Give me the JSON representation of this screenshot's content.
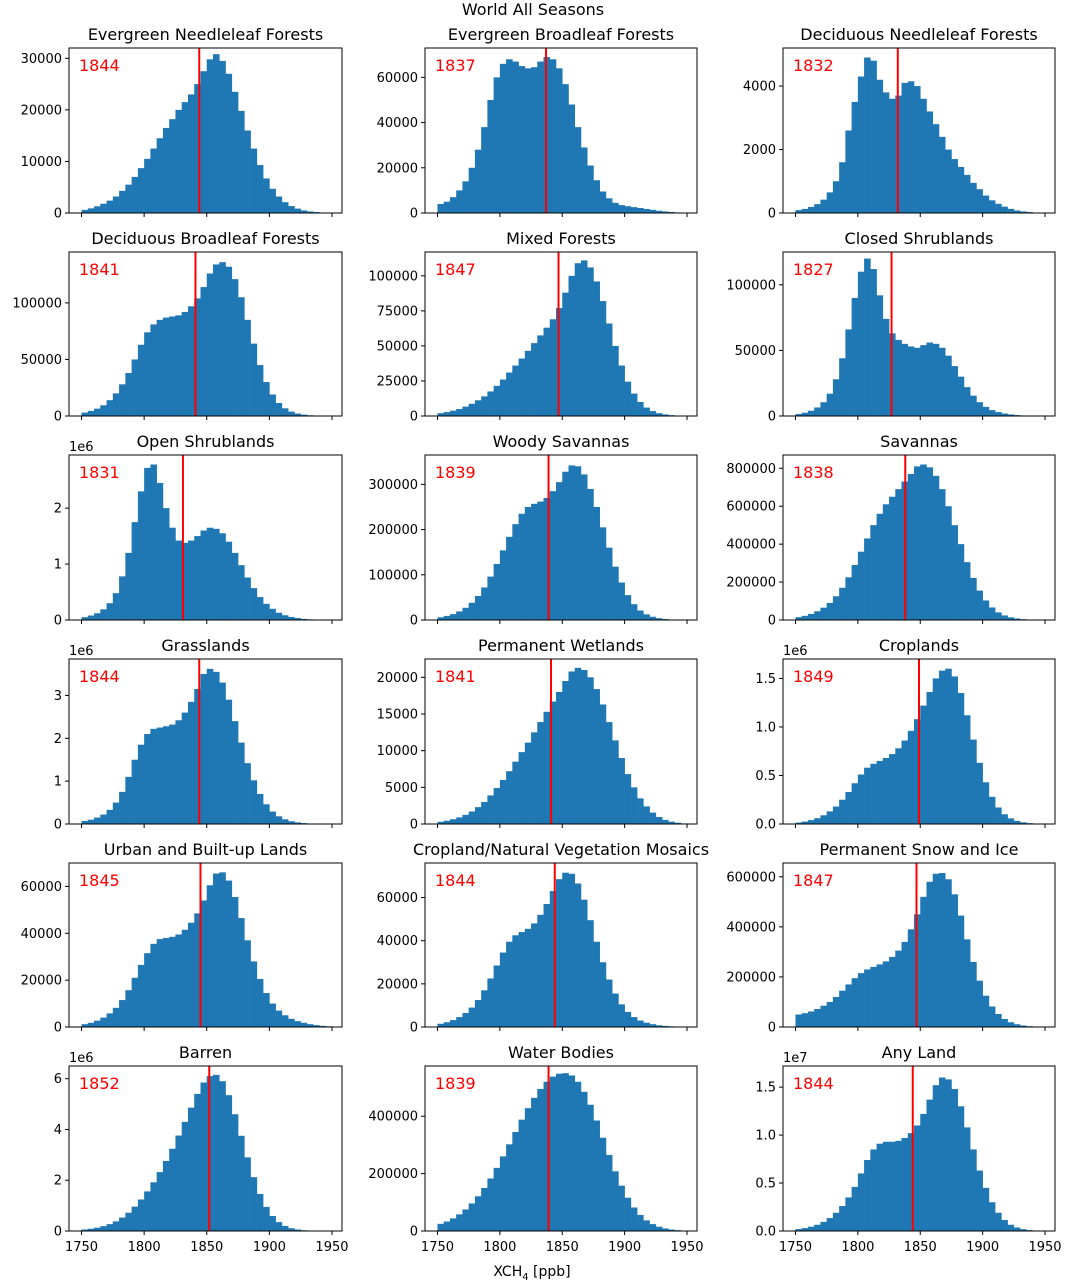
{
  "figure": {
    "suptitle": "World All Seasons",
    "xlabel_main": "XCH",
    "xlabel_sub": "4",
    "xlabel_unit": " [ppb]"
  },
  "colors": {
    "bar": "#1f77b4",
    "median_line": "#ff0000",
    "median_text": "#ff0000",
    "axis": "#000000"
  },
  "x_ticks": [
    1750,
    1800,
    1850,
    1900,
    1950
  ],
  "chart_data": [
    {
      "type": "bar",
      "title": "Evergreen Needleleaf Forests",
      "median": 1844,
      "ymax": 32000,
      "yticks": [
        0,
        10000,
        20000,
        30000
      ],
      "ytick_labels": [
        "0",
        "10000",
        "20000",
        "30000"
      ],
      "offset": "",
      "bin_start": 1750,
      "bin_width": 5,
      "values": [
        600,
        900,
        1300,
        1800,
        2400,
        3200,
        4300,
        5500,
        7000,
        8700,
        10500,
        12500,
        14500,
        16500,
        18200,
        20000,
        21500,
        23000,
        25000,
        27500,
        29800,
        30800,
        29500,
        27000,
        23500,
        19800,
        16000,
        12500,
        9300,
        6700,
        4700,
        3200,
        2100,
        1350,
        850,
        500,
        300,
        180,
        100,
        50
      ]
    },
    {
      "type": "bar",
      "title": "Evergreen Broadleaf Forests",
      "median": 1837,
      "ymax": 73000,
      "yticks": [
        0,
        20000,
        40000,
        60000
      ],
      "ytick_labels": [
        "0",
        "20000",
        "40000",
        "60000"
      ],
      "offset": "",
      "bin_start": 1750,
      "bin_width": 5,
      "values": [
        4000,
        5000,
        7000,
        10000,
        14000,
        20000,
        28000,
        38000,
        50000,
        60000,
        66000,
        68000,
        67000,
        65000,
        64000,
        64500,
        67000,
        69000,
        68000,
        64000,
        57000,
        48000,
        38000,
        29000,
        21000,
        14500,
        9500,
        6500,
        4500,
        3500,
        3000,
        2600,
        2200,
        1800,
        1400,
        1000,
        700,
        450,
        250,
        120
      ]
    },
    {
      "type": "bar",
      "title": "Deciduous Needleleaf Forests",
      "median": 1832,
      "ymax": 5200,
      "yticks": [
        0,
        2000,
        4000
      ],
      "ytick_labels": [
        "0",
        "2000",
        "4000"
      ],
      "offset": "",
      "bin_start": 1750,
      "bin_width": 5,
      "values": [
        90,
        130,
        190,
        280,
        420,
        650,
        1000,
        1600,
        2600,
        3500,
        4300,
        4900,
        4800,
        4200,
        3800,
        3600,
        3700,
        4100,
        4150,
        4000,
        3600,
        3200,
        2800,
        2400,
        2000,
        1700,
        1450,
        1200,
        950,
        750,
        550,
        400,
        290,
        200,
        130,
        80,
        50,
        30,
        15,
        8
      ]
    },
    {
      "type": "bar",
      "title": "Deciduous Broadleaf Forests",
      "median": 1841,
      "ymax": 145000,
      "yticks": [
        0,
        50000,
        100000
      ],
      "ytick_labels": [
        "0",
        "50000",
        "100000"
      ],
      "offset": "",
      "bin_start": 1750,
      "bin_width": 5,
      "values": [
        3000,
        4500,
        6500,
        9500,
        14000,
        20000,
        28000,
        38000,
        50000,
        63000,
        74000,
        81000,
        85000,
        87000,
        88000,
        89000,
        92000,
        97000,
        104000,
        114000,
        126000,
        134000,
        136000,
        132000,
        121000,
        105000,
        85000,
        64000,
        45000,
        30000,
        19000,
        11500,
        6800,
        3900,
        2200,
        1200,
        650,
        340,
        170,
        80
      ]
    },
    {
      "type": "bar",
      "title": "Mixed Forests",
      "median": 1847,
      "ymax": 117000,
      "yticks": [
        0,
        25000,
        50000,
        75000,
        100000
      ],
      "ytick_labels": [
        "0",
        "25000",
        "50000",
        "75000",
        "100000"
      ],
      "offset": "",
      "bin_start": 1750,
      "bin_width": 5,
      "values": [
        2000,
        2800,
        3800,
        5000,
        6700,
        8700,
        11200,
        14000,
        17500,
        21500,
        26000,
        31000,
        36000,
        41000,
        46500,
        52000,
        57500,
        63000,
        69000,
        77000,
        88000,
        100000,
        109000,
        111000,
        106000,
        96000,
        82000,
        66000,
        50000,
        36000,
        24500,
        16000,
        10000,
        6000,
        3500,
        2000,
        1100,
        600,
        300,
        150
      ]
    },
    {
      "type": "bar",
      "title": "Closed Shrublands",
      "median": 1827,
      "ymax": 125000,
      "yticks": [
        0,
        50000,
        100000
      ],
      "ytick_labels": [
        "0",
        "50000",
        "100000"
      ],
      "offset": "",
      "bin_start": 1750,
      "bin_width": 5,
      "values": [
        1500,
        2500,
        4000,
        6500,
        10500,
        17000,
        28000,
        44000,
        66000,
        90000,
        110000,
        120000,
        112000,
        92000,
        74000,
        63000,
        58000,
        55000,
        53000,
        52000,
        54000,
        56000,
        55000,
        52000,
        46000,
        38000,
        30000,
        22000,
        15500,
        10500,
        7000,
        4500,
        3000,
        1900,
        1200,
        700,
        400,
        220,
        120,
        60
      ]
    },
    {
      "type": "bar",
      "title": "Open Shrublands",
      "median": 1831,
      "ymax": 2.95,
      "yticks": [
        0,
        1,
        2
      ],
      "ytick_labels": [
        "0",
        "1",
        "2"
      ],
      "offset": "1e6",
      "bin_start": 1750,
      "bin_width": 5,
      "values": [
        0.05,
        0.08,
        0.12,
        0.19,
        0.3,
        0.48,
        0.78,
        1.2,
        1.75,
        2.3,
        2.72,
        2.78,
        2.45,
        2.0,
        1.65,
        1.42,
        1.38,
        1.42,
        1.5,
        1.6,
        1.65,
        1.63,
        1.55,
        1.4,
        1.2,
        0.98,
        0.76,
        0.57,
        0.41,
        0.29,
        0.2,
        0.13,
        0.085,
        0.055,
        0.035,
        0.02,
        0.012,
        0.007,
        0.004,
        0.002
      ]
    },
    {
      "type": "bar",
      "title": "Woody Savannas",
      "median": 1839,
      "ymax": 365000,
      "yticks": [
        0,
        100000,
        200000,
        300000
      ],
      "ytick_labels": [
        "0",
        "100000",
        "200000",
        "300000"
      ],
      "offset": "",
      "bin_start": 1750,
      "bin_width": 5,
      "values": [
        6000,
        9000,
        13000,
        19000,
        27000,
        38000,
        53000,
        72000,
        96000,
        124000,
        154000,
        184000,
        212000,
        235000,
        250000,
        257000,
        262000,
        270000,
        285000,
        305000,
        328000,
        342000,
        340000,
        322000,
        290000,
        250000,
        205000,
        160000,
        118000,
        83000,
        55000,
        35000,
        21000,
        12500,
        7200,
        4000,
        2100,
        1100,
        550,
        260
      ]
    },
    {
      "type": "bar",
      "title": "Savannas",
      "median": 1838,
      "ymax": 870000,
      "yticks": [
        0,
        200000,
        400000,
        600000,
        800000
      ],
      "ytick_labels": [
        "0",
        "200000",
        "400000",
        "600000",
        "800000"
      ],
      "offset": "",
      "bin_start": 1750,
      "bin_width": 5,
      "values": [
        15000,
        22000,
        32000,
        46000,
        65000,
        90000,
        125000,
        170000,
        225000,
        290000,
        360000,
        430000,
        500000,
        560000,
        610000,
        650000,
        690000,
        730000,
        770000,
        810000,
        820000,
        805000,
        760000,
        690000,
        600000,
        500000,
        400000,
        305000,
        222000,
        155000,
        103000,
        66000,
        40000,
        24000,
        14000,
        8000,
        4300,
        2200,
        1100,
        500
      ]
    },
    {
      "type": "bar",
      "title": "Grasslands",
      "median": 1844,
      "ymax": 3.85,
      "yticks": [
        0,
        1,
        2,
        3
      ],
      "ytick_labels": [
        "0",
        "1",
        "2",
        "3"
      ],
      "offset": "1e6",
      "bin_start": 1750,
      "bin_width": 5,
      "values": [
        0.07,
        0.1,
        0.15,
        0.22,
        0.33,
        0.5,
        0.75,
        1.1,
        1.5,
        1.85,
        2.1,
        2.22,
        2.25,
        2.28,
        2.32,
        2.42,
        2.6,
        2.85,
        3.15,
        3.5,
        3.62,
        3.55,
        3.3,
        2.9,
        2.4,
        1.9,
        1.42,
        1.02,
        0.7,
        0.46,
        0.29,
        0.18,
        0.11,
        0.065,
        0.038,
        0.021,
        0.011,
        0.006,
        0.003,
        0.0015
      ]
    },
    {
      "type": "bar",
      "title": "Permanent Wetlands",
      "median": 1841,
      "ymax": 22500,
      "yticks": [
        0,
        5000,
        10000,
        15000,
        20000
      ],
      "ytick_labels": [
        "0",
        "5000",
        "10000",
        "15000",
        "20000"
      ],
      "offset": "",
      "bin_start": 1750,
      "bin_width": 5,
      "values": [
        300,
        450,
        650,
        900,
        1250,
        1700,
        2300,
        3000,
        3900,
        4900,
        6000,
        7200,
        8500,
        9800,
        11100,
        12500,
        13900,
        15300,
        16700,
        18000,
        19500,
        20800,
        21300,
        21000,
        20000,
        18400,
        16300,
        13900,
        11400,
        9000,
        6800,
        5000,
        3500,
        2400,
        1550,
        950,
        560,
        320,
        170,
        80
      ]
    },
    {
      "type": "bar",
      "title": "Croplands",
      "median": 1849,
      "ymax": 1.7,
      "yticks": [
        0,
        0.5,
        1.0,
        1.5
      ],
      "ytick_labels": [
        "0.0",
        "0.5",
        "1.0",
        "1.5"
      ],
      "offset": "1e6",
      "bin_start": 1750,
      "bin_width": 5,
      "values": [
        0.015,
        0.025,
        0.04,
        0.06,
        0.09,
        0.13,
        0.18,
        0.25,
        0.33,
        0.42,
        0.51,
        0.58,
        0.62,
        0.65,
        0.68,
        0.72,
        0.78,
        0.86,
        0.96,
        1.08,
        1.22,
        1.36,
        1.5,
        1.58,
        1.6,
        1.52,
        1.35,
        1.12,
        0.87,
        0.63,
        0.43,
        0.28,
        0.17,
        0.1,
        0.058,
        0.032,
        0.017,
        0.009,
        0.0045,
        0.002
      ]
    },
    {
      "type": "bar",
      "title": "Urban and Built-up Lands",
      "median": 1845,
      "ymax": 70000,
      "yticks": [
        0,
        20000,
        40000,
        60000
      ],
      "ytick_labels": [
        "0",
        "20000",
        "40000",
        "60000"
      ],
      "offset": "",
      "bin_start": 1750,
      "bin_width": 5,
      "values": [
        1200,
        1800,
        2700,
        4000,
        5800,
        8200,
        11500,
        15700,
        21000,
        26500,
        31500,
        35500,
        37500,
        38000,
        38500,
        39500,
        41500,
        44500,
        48500,
        54000,
        60500,
        65500,
        66000,
        62500,
        55500,
        46500,
        37000,
        28000,
        20500,
        14500,
        10000,
        7000,
        5000,
        3500,
        2500,
        1800,
        1200,
        800,
        500,
        300
      ]
    },
    {
      "type": "bar",
      "title": "Cropland/Natural Vegetation Mosaics",
      "median": 1844,
      "ymax": 76000,
      "yticks": [
        0,
        20000,
        40000,
        60000
      ],
      "ytick_labels": [
        "0",
        "20000",
        "40000",
        "60000"
      ],
      "offset": "",
      "bin_start": 1750,
      "bin_width": 5,
      "values": [
        1500,
        2200,
        3200,
        4600,
        6500,
        9000,
        12500,
        17000,
        22500,
        28500,
        34500,
        39500,
        42500,
        44000,
        45500,
        48000,
        52000,
        57000,
        63000,
        68500,
        71500,
        71000,
        66500,
        59000,
        49500,
        39500,
        30000,
        22000,
        15500,
        10500,
        7000,
        4600,
        3000,
        2000,
        1300,
        800,
        500,
        300,
        180,
        100
      ]
    },
    {
      "type": "bar",
      "title": "Permanent Snow and Ice",
      "median": 1847,
      "ymax": 655000,
      "yticks": [
        0,
        200000,
        400000,
        600000
      ],
      "ytick_labels": [
        "0",
        "200000",
        "400000",
        "600000"
      ],
      "offset": "",
      "bin_start": 1750,
      "bin_width": 5,
      "values": [
        50000,
        55000,
        62000,
        72000,
        85000,
        100000,
        120000,
        145000,
        170000,
        195000,
        215000,
        230000,
        240000,
        250000,
        262000,
        280000,
        305000,
        340000,
        390000,
        450000,
        520000,
        580000,
        612000,
        615000,
        590000,
        530000,
        445000,
        350000,
        260000,
        185000,
        125000,
        82000,
        52000,
        32000,
        19000,
        11000,
        6000,
        3200,
        1600,
        750
      ]
    },
    {
      "type": "bar",
      "title": "Barren",
      "median": 1852,
      "ymax": 6.5,
      "yticks": [
        0,
        2,
        4,
        6
      ],
      "ytick_labels": [
        "0",
        "2",
        "4",
        "6"
      ],
      "offset": "1e6",
      "bin_start": 1750,
      "bin_width": 5,
      "values": [
        0.06,
        0.09,
        0.13,
        0.19,
        0.27,
        0.38,
        0.53,
        0.72,
        0.96,
        1.24,
        1.56,
        1.92,
        2.32,
        2.76,
        3.24,
        3.76,
        4.3,
        4.86,
        5.4,
        5.85,
        6.1,
        6.15,
        5.9,
        5.35,
        4.6,
        3.75,
        2.9,
        2.12,
        1.46,
        0.95,
        0.59,
        0.35,
        0.2,
        0.11,
        0.06,
        0.03,
        0.016,
        0.008,
        0.004,
        0.002
      ]
    },
    {
      "type": "bar",
      "title": "Water Bodies",
      "median": 1839,
      "ymax": 575000,
      "yticks": [
        0,
        200000,
        400000
      ],
      "ytick_labels": [
        "0",
        "200000",
        "400000"
      ],
      "offset": "",
      "bin_start": 1750,
      "bin_width": 5,
      "values": [
        25000,
        33000,
        44000,
        58000,
        75000,
        96000,
        121000,
        150000,
        183000,
        220000,
        260000,
        302000,
        345000,
        388000,
        428000,
        464000,
        495000,
        520000,
        538000,
        548000,
        550000,
        542000,
        520000,
        485000,
        440000,
        385000,
        325000,
        265000,
        208000,
        158000,
        116000,
        82000,
        56000,
        37000,
        24000,
        15000,
        9000,
        5200,
        2900,
        1500
      ]
    },
    {
      "type": "bar",
      "title": "Any Land",
      "median": 1844,
      "ymax": 1.72,
      "yticks": [
        0,
        0.5,
        1.0,
        1.5
      ],
      "ytick_labels": [
        "0.0",
        "0.5",
        "1.0",
        "1.5"
      ],
      "offset": "1e7",
      "bin_start": 1750,
      "bin_width": 5,
      "values": [
        0.02,
        0.03,
        0.045,
        0.065,
        0.095,
        0.135,
        0.19,
        0.26,
        0.35,
        0.46,
        0.6,
        0.74,
        0.85,
        0.91,
        0.93,
        0.93,
        0.94,
        0.97,
        1.02,
        1.1,
        1.22,
        1.37,
        1.52,
        1.6,
        1.58,
        1.48,
        1.3,
        1.08,
        0.85,
        0.63,
        0.45,
        0.3,
        0.19,
        0.115,
        0.065,
        0.036,
        0.019,
        0.0095,
        0.0045,
        0.002
      ]
    }
  ]
}
